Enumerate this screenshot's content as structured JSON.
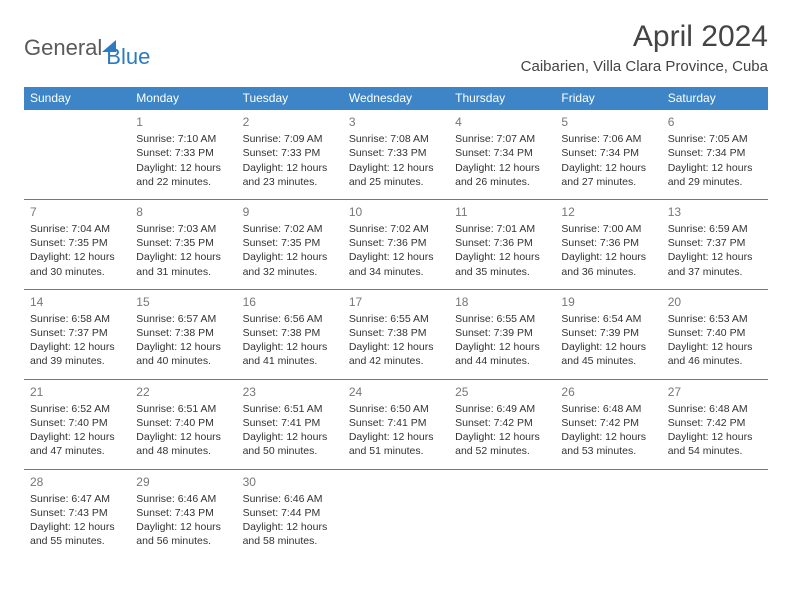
{
  "logo": {
    "part1": "General",
    "part2": "Blue"
  },
  "title": "April 2024",
  "location": "Caibarien, Villa Clara Province, Cuba",
  "colors": {
    "header_bg": "#3d85c6",
    "header_text": "#ffffff",
    "rule": "#3d85c6",
    "logo_gray": "#5a5a5a",
    "logo_blue": "#2b7bc0",
    "body_text": "#333333",
    "daynum": "#777777",
    "background": "#ffffff"
  },
  "day_names": [
    "Sunday",
    "Monday",
    "Tuesday",
    "Wednesday",
    "Thursday",
    "Friday",
    "Saturday"
  ],
  "weeks": [
    [
      null,
      {
        "n": "1",
        "sr": "Sunrise: 7:10 AM",
        "ss": "Sunset: 7:33 PM",
        "dl": "Daylight: 12 hours and 22 minutes."
      },
      {
        "n": "2",
        "sr": "Sunrise: 7:09 AM",
        "ss": "Sunset: 7:33 PM",
        "dl": "Daylight: 12 hours and 23 minutes."
      },
      {
        "n": "3",
        "sr": "Sunrise: 7:08 AM",
        "ss": "Sunset: 7:33 PM",
        "dl": "Daylight: 12 hours and 25 minutes."
      },
      {
        "n": "4",
        "sr": "Sunrise: 7:07 AM",
        "ss": "Sunset: 7:34 PM",
        "dl": "Daylight: 12 hours and 26 minutes."
      },
      {
        "n": "5",
        "sr": "Sunrise: 7:06 AM",
        "ss": "Sunset: 7:34 PM",
        "dl": "Daylight: 12 hours and 27 minutes."
      },
      {
        "n": "6",
        "sr": "Sunrise: 7:05 AM",
        "ss": "Sunset: 7:34 PM",
        "dl": "Daylight: 12 hours and 29 minutes."
      }
    ],
    [
      {
        "n": "7",
        "sr": "Sunrise: 7:04 AM",
        "ss": "Sunset: 7:35 PM",
        "dl": "Daylight: 12 hours and 30 minutes."
      },
      {
        "n": "8",
        "sr": "Sunrise: 7:03 AM",
        "ss": "Sunset: 7:35 PM",
        "dl": "Daylight: 12 hours and 31 minutes."
      },
      {
        "n": "9",
        "sr": "Sunrise: 7:02 AM",
        "ss": "Sunset: 7:35 PM",
        "dl": "Daylight: 12 hours and 32 minutes."
      },
      {
        "n": "10",
        "sr": "Sunrise: 7:02 AM",
        "ss": "Sunset: 7:36 PM",
        "dl": "Daylight: 12 hours and 34 minutes."
      },
      {
        "n": "11",
        "sr": "Sunrise: 7:01 AM",
        "ss": "Sunset: 7:36 PM",
        "dl": "Daylight: 12 hours and 35 minutes."
      },
      {
        "n": "12",
        "sr": "Sunrise: 7:00 AM",
        "ss": "Sunset: 7:36 PM",
        "dl": "Daylight: 12 hours and 36 minutes."
      },
      {
        "n": "13",
        "sr": "Sunrise: 6:59 AM",
        "ss": "Sunset: 7:37 PM",
        "dl": "Daylight: 12 hours and 37 minutes."
      }
    ],
    [
      {
        "n": "14",
        "sr": "Sunrise: 6:58 AM",
        "ss": "Sunset: 7:37 PM",
        "dl": "Daylight: 12 hours and 39 minutes."
      },
      {
        "n": "15",
        "sr": "Sunrise: 6:57 AM",
        "ss": "Sunset: 7:38 PM",
        "dl": "Daylight: 12 hours and 40 minutes."
      },
      {
        "n": "16",
        "sr": "Sunrise: 6:56 AM",
        "ss": "Sunset: 7:38 PM",
        "dl": "Daylight: 12 hours and 41 minutes."
      },
      {
        "n": "17",
        "sr": "Sunrise: 6:55 AM",
        "ss": "Sunset: 7:38 PM",
        "dl": "Daylight: 12 hours and 42 minutes."
      },
      {
        "n": "18",
        "sr": "Sunrise: 6:55 AM",
        "ss": "Sunset: 7:39 PM",
        "dl": "Daylight: 12 hours and 44 minutes."
      },
      {
        "n": "19",
        "sr": "Sunrise: 6:54 AM",
        "ss": "Sunset: 7:39 PM",
        "dl": "Daylight: 12 hours and 45 minutes."
      },
      {
        "n": "20",
        "sr": "Sunrise: 6:53 AM",
        "ss": "Sunset: 7:40 PM",
        "dl": "Daylight: 12 hours and 46 minutes."
      }
    ],
    [
      {
        "n": "21",
        "sr": "Sunrise: 6:52 AM",
        "ss": "Sunset: 7:40 PM",
        "dl": "Daylight: 12 hours and 47 minutes."
      },
      {
        "n": "22",
        "sr": "Sunrise: 6:51 AM",
        "ss": "Sunset: 7:40 PM",
        "dl": "Daylight: 12 hours and 48 minutes."
      },
      {
        "n": "23",
        "sr": "Sunrise: 6:51 AM",
        "ss": "Sunset: 7:41 PM",
        "dl": "Daylight: 12 hours and 50 minutes."
      },
      {
        "n": "24",
        "sr": "Sunrise: 6:50 AM",
        "ss": "Sunset: 7:41 PM",
        "dl": "Daylight: 12 hours and 51 minutes."
      },
      {
        "n": "25",
        "sr": "Sunrise: 6:49 AM",
        "ss": "Sunset: 7:42 PM",
        "dl": "Daylight: 12 hours and 52 minutes."
      },
      {
        "n": "26",
        "sr": "Sunrise: 6:48 AM",
        "ss": "Sunset: 7:42 PM",
        "dl": "Daylight: 12 hours and 53 minutes."
      },
      {
        "n": "27",
        "sr": "Sunrise: 6:48 AM",
        "ss": "Sunset: 7:42 PM",
        "dl": "Daylight: 12 hours and 54 minutes."
      }
    ],
    [
      {
        "n": "28",
        "sr": "Sunrise: 6:47 AM",
        "ss": "Sunset: 7:43 PM",
        "dl": "Daylight: 12 hours and 55 minutes."
      },
      {
        "n": "29",
        "sr": "Sunrise: 6:46 AM",
        "ss": "Sunset: 7:43 PM",
        "dl": "Daylight: 12 hours and 56 minutes."
      },
      {
        "n": "30",
        "sr": "Sunrise: 6:46 AM",
        "ss": "Sunset: 7:44 PM",
        "dl": "Daylight: 12 hours and 58 minutes."
      },
      null,
      null,
      null,
      null
    ]
  ]
}
